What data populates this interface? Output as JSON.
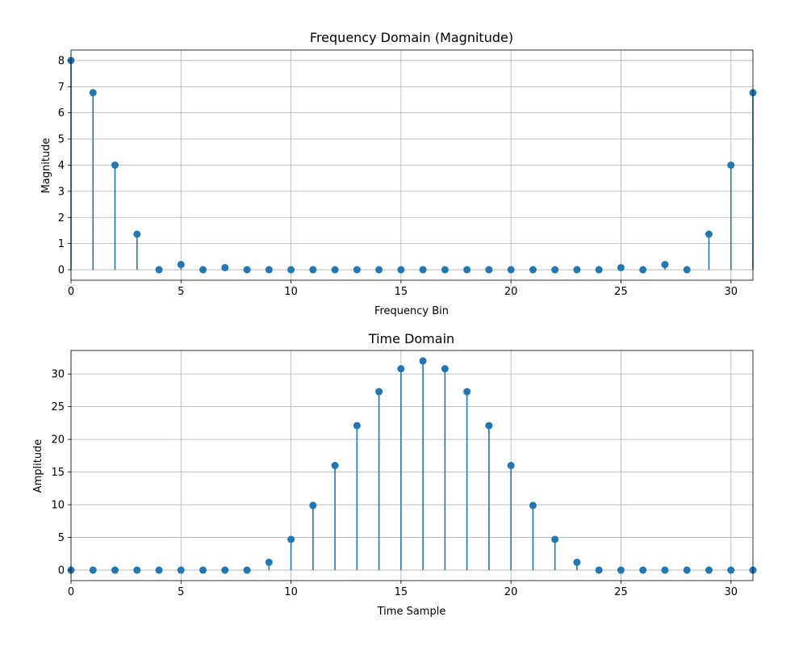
{
  "chart_data": [
    {
      "type": "stem",
      "title": "Frequency Domain (Magnitude)",
      "xlabel": "Frequency Bin",
      "ylabel": "Magnitude",
      "xlim": [
        0,
        31
      ],
      "ylim": [
        -0.4,
        8.4
      ],
      "xticks": [
        0,
        5,
        10,
        15,
        20,
        25,
        30
      ],
      "yticks": [
        0,
        1,
        2,
        3,
        4,
        5,
        6,
        7,
        8
      ],
      "grid": true,
      "color": "#1f77b4",
      "x": [
        0,
        1,
        2,
        3,
        4,
        5,
        6,
        7,
        8,
        9,
        10,
        11,
        12,
        13,
        14,
        15,
        16,
        17,
        18,
        19,
        20,
        21,
        22,
        23,
        24,
        25,
        26,
        27,
        28,
        29,
        30,
        31
      ],
      "values": [
        8,
        6.77,
        4,
        1.36,
        0,
        0.2,
        0,
        0.08,
        0,
        0,
        0,
        0,
        0,
        0,
        0,
        0,
        0,
        0,
        0,
        0,
        0,
        0,
        0,
        0,
        0,
        0.08,
        0,
        0.2,
        0,
        1.36,
        4,
        6.77
      ]
    },
    {
      "type": "stem",
      "title": "Time Domain",
      "xlabel": "Time Sample",
      "ylabel": "Amplitude",
      "xlim": [
        0,
        31
      ],
      "ylim": [
        -1.6,
        33.6
      ],
      "xticks": [
        0,
        5,
        10,
        15,
        20,
        25,
        30
      ],
      "yticks": [
        0,
        5,
        10,
        15,
        20,
        25,
        30
      ],
      "grid": true,
      "color": "#1f77b4",
      "x": [
        0,
        1,
        2,
        3,
        4,
        5,
        6,
        7,
        8,
        9,
        10,
        11,
        12,
        13,
        14,
        15,
        16,
        17,
        18,
        19,
        20,
        21,
        22,
        23,
        24,
        25,
        26,
        27,
        28,
        29,
        30,
        31
      ],
      "values": [
        0,
        0,
        0,
        0,
        0,
        0,
        0,
        0,
        0,
        1.2,
        4.7,
        9.9,
        16,
        22.1,
        27.3,
        30.8,
        32,
        30.8,
        27.3,
        22.1,
        16,
        9.9,
        4.7,
        1.2,
        0,
        0,
        0,
        0,
        0,
        0,
        0,
        0
      ]
    }
  ]
}
